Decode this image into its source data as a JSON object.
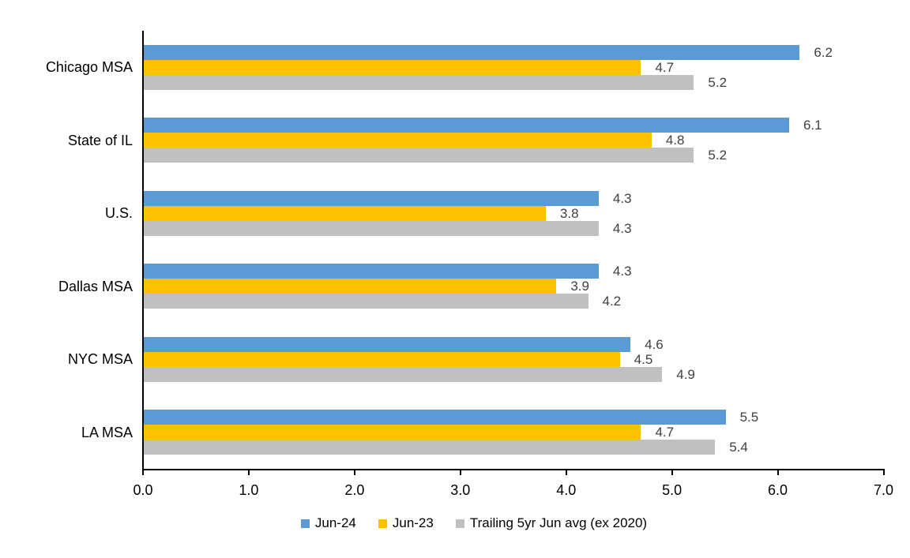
{
  "chart_data": {
    "type": "bar",
    "orientation": "horizontal",
    "title": "",
    "xlabel": "",
    "ylabel": "",
    "categories": [
      "Chicago MSA",
      "State of IL",
      "U.S.",
      "Dallas MSA",
      "NYC MSA",
      "LA MSA"
    ],
    "series": [
      {
        "name": "Jun-24",
        "color": "#5B9BD5",
        "values": [
          6.2,
          6.1,
          4.3,
          4.3,
          4.6,
          5.5
        ]
      },
      {
        "name": "Jun-23",
        "color": "#FFC000",
        "values": [
          4.7,
          4.8,
          3.8,
          3.9,
          4.5,
          4.7
        ]
      },
      {
        "name": "Trailing 5yr Jun avg (ex 2020)",
        "color": "#C0C0C0",
        "values": [
          5.2,
          5.2,
          4.3,
          4.2,
          4.9,
          5.4
        ]
      }
    ],
    "xlim": [
      0.0,
      7.0
    ],
    "x_ticks": [
      "0.0",
      "1.0",
      "2.0",
      "3.0",
      "4.0",
      "5.0",
      "6.0",
      "7.0"
    ],
    "data_labels": true,
    "grid": false,
    "legend_position": "bottom"
  },
  "colors": {
    "axis": "#000000",
    "data_label": "#404040",
    "category_label": "#000000",
    "background": "#FFFFFF"
  }
}
